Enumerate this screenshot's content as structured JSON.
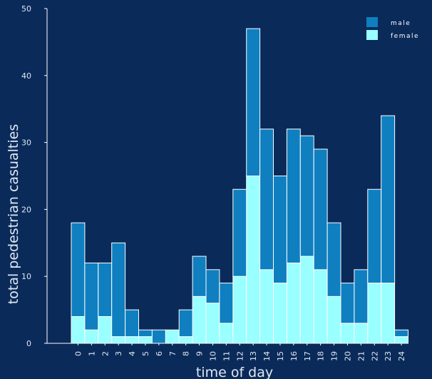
{
  "chart_data": {
    "type": "bar",
    "stacked": true,
    "title": "",
    "xlabel": "time of day",
    "ylabel": "total pedestrian casualties",
    "ylim": [
      0,
      50
    ],
    "yticks": [
      0,
      10,
      20,
      30,
      40,
      50
    ],
    "grid": false,
    "legend_position": "top-right",
    "categories": [
      "0",
      "1",
      "2",
      "3",
      "4",
      "5",
      "6",
      "7",
      "8",
      "9",
      "10",
      "11",
      "12",
      "13",
      "14",
      "15",
      "16",
      "17",
      "18",
      "19",
      "20",
      "21",
      "22",
      "23",
      "24"
    ],
    "series": [
      {
        "name": "female",
        "color": "#99ffff",
        "values": [
          4,
          2,
          4,
          1,
          1,
          1,
          0,
          2,
          1,
          7,
          6,
          3,
          10,
          25,
          11,
          9,
          12,
          13,
          11,
          7,
          3,
          3,
          9,
          9,
          1
        ]
      },
      {
        "name": "male",
        "color": "#0f7fbf",
        "values": [
          14,
          10,
          8,
          14,
          4,
          1,
          2,
          0,
          4,
          6,
          5,
          6,
          13,
          22,
          21,
          16,
          20,
          18,
          18,
          11,
          6,
          8,
          14,
          25,
          1
        ]
      }
    ],
    "legend": [
      {
        "label": "male",
        "color": "#0f7fbf"
      },
      {
        "label": "female",
        "color": "#99ffff"
      }
    ]
  }
}
